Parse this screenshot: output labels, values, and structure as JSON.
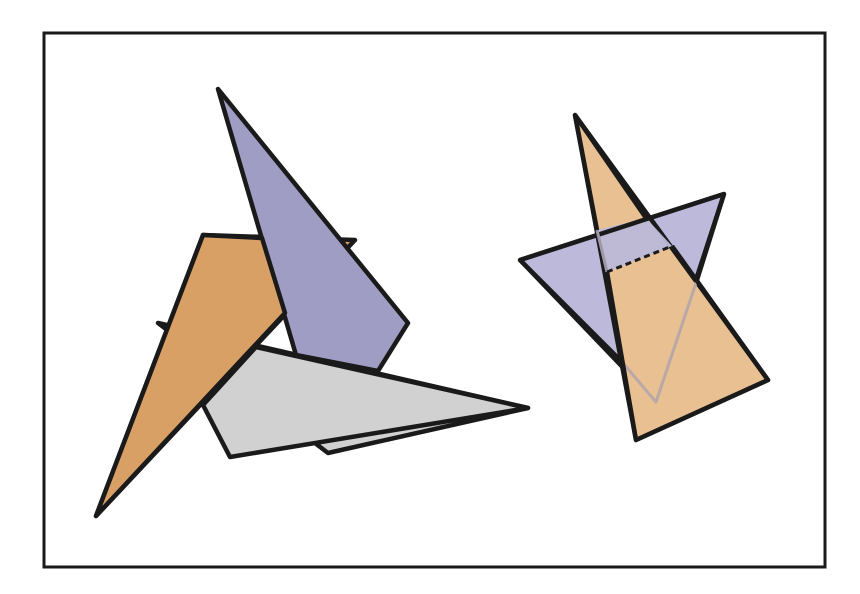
{
  "colors": {
    "background": "#ffffff",
    "frame": "#1a1a1a",
    "outline": "#1a1a1a",
    "orange": "#d9a066",
    "purple": "#a09dc4",
    "gray": "#d1d1d1",
    "light_orange": "#e8c092",
    "light_purple": "#bcb9da"
  },
  "scenes": [
    {
      "name": "overlapping-triangles",
      "description_visible": false,
      "shapes": [
        "orange-triangle",
        "purple-triangle",
        "gray-triangle"
      ]
    },
    {
      "name": "intersecting-triangles",
      "description_visible": false,
      "shapes": [
        "purple-triangle",
        "orange-triangle"
      ]
    }
  ]
}
